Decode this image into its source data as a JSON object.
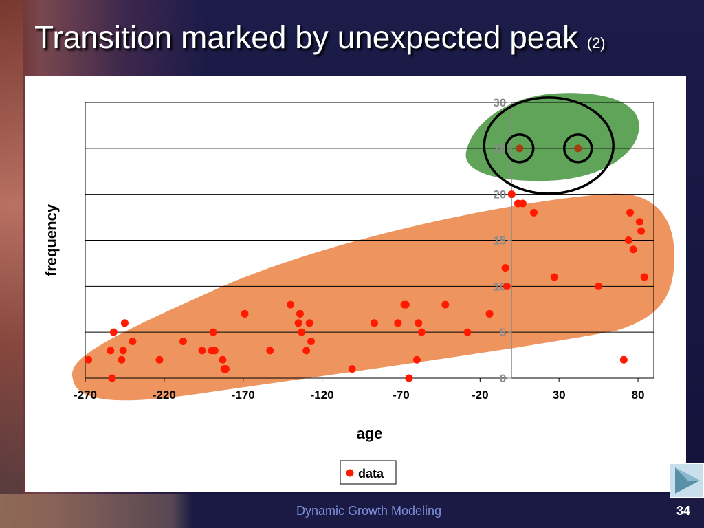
{
  "slide": {
    "title": "Transition marked by unexpected peak",
    "title_suffix": "(2)",
    "footer": "Dynamic Growth Modeling",
    "page_number": "34"
  },
  "colors": {
    "point": "#ff1a00",
    "highlight_point": "#a04010",
    "orange_region": "#ec8a4e",
    "green_region": "#4f9a47",
    "gridline": "#000000",
    "axis_text": "#000000",
    "y_tick_text": "#8a8a8a"
  },
  "chart_data": {
    "type": "scatter",
    "title": "",
    "xlabel": "age",
    "ylabel": "frequency",
    "xlim": [
      -270,
      90
    ],
    "ylim": [
      0,
      30
    ],
    "x_ticks": [
      -270,
      -220,
      -170,
      -120,
      -70,
      -20,
      30,
      80
    ],
    "y_ticks": [
      0,
      5,
      10,
      15,
      20,
      25,
      30
    ],
    "y_axis_at_x": 0,
    "grid": {
      "horizontal": true,
      "vertical": false
    },
    "legend": {
      "position": "bottom",
      "entries": [
        "data"
      ]
    },
    "series": [
      {
        "name": "data",
        "points": [
          [
            -268,
            2
          ],
          [
            -254,
            3
          ],
          [
            -253,
            0
          ],
          [
            -252,
            5
          ],
          [
            -247,
            2
          ],
          [
            -246,
            3
          ],
          [
            -245,
            6
          ],
          [
            -240,
            4
          ],
          [
            -223,
            2
          ],
          [
            -208,
            4
          ],
          [
            -196,
            3
          ],
          [
            -190,
            3
          ],
          [
            -189,
            5
          ],
          [
            -188,
            3
          ],
          [
            -183,
            2
          ],
          [
            -182,
            1
          ],
          [
            -181,
            1
          ],
          [
            -169,
            7
          ],
          [
            -153,
            3
          ],
          [
            -140,
            8
          ],
          [
            -135,
            6
          ],
          [
            -134,
            7
          ],
          [
            -133,
            5
          ],
          [
            -130,
            3
          ],
          [
            -128,
            6
          ],
          [
            -127,
            4
          ],
          [
            -101,
            1
          ],
          [
            -87,
            6
          ],
          [
            -72,
            6
          ],
          [
            -68,
            8
          ],
          [
            -67,
            8
          ],
          [
            -65,
            0
          ],
          [
            -60,
            2
          ],
          [
            -59,
            6
          ],
          [
            -57,
            5
          ],
          [
            -42,
            8
          ],
          [
            -28,
            5
          ],
          [
            -14,
            7
          ],
          [
            -4,
            12
          ],
          [
            -3,
            10
          ],
          [
            0,
            20
          ],
          [
            4,
            19
          ],
          [
            7,
            19
          ],
          [
            14,
            18
          ],
          [
            27,
            11
          ],
          [
            55,
            10
          ],
          [
            71,
            2
          ],
          [
            74,
            15
          ],
          [
            75,
            18
          ],
          [
            77,
            14
          ],
          [
            81,
            17
          ],
          [
            82,
            16
          ],
          [
            84,
            11
          ]
        ]
      }
    ],
    "highlighted_points": [
      [
        5,
        25
      ],
      [
        42,
        25
      ]
    ]
  }
}
